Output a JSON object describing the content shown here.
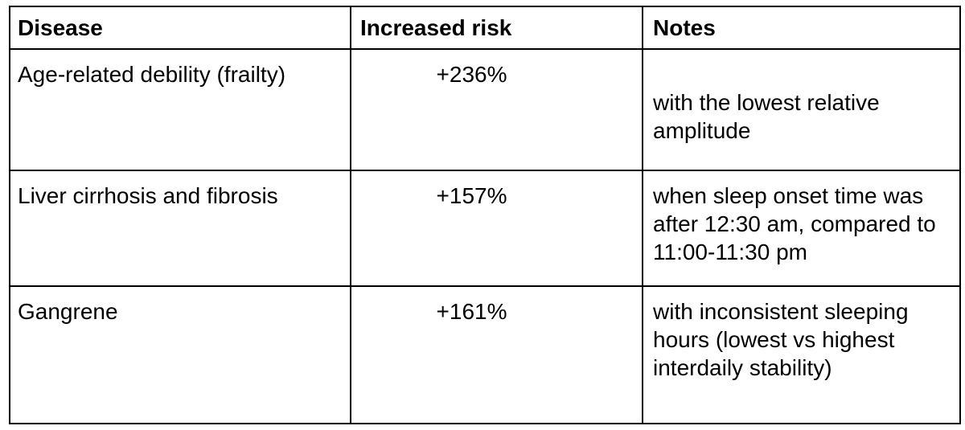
{
  "table": {
    "columns": [
      {
        "label": "Disease"
      },
      {
        "label": "Increased risk"
      },
      {
        "label": "Notes"
      }
    ],
    "rows": [
      {
        "disease": "Age-related debility (frailty)",
        "risk": "+236%",
        "note": "with the lowest relative amplitude"
      },
      {
        "disease": "Liver cirrhosis and fibrosis",
        "risk": "+157%",
        "note": "when sleep onset time was after 12:30 am, compared to 11:00-11:30 pm"
      },
      {
        "disease": "Gangrene",
        "risk": "+161%",
        "note": "with inconsistent sleeping hours (lowest vs highest interdaily stability)"
      }
    ]
  },
  "colors": {
    "border": "#000000",
    "text": "#000000",
    "background": "#ffffff"
  }
}
